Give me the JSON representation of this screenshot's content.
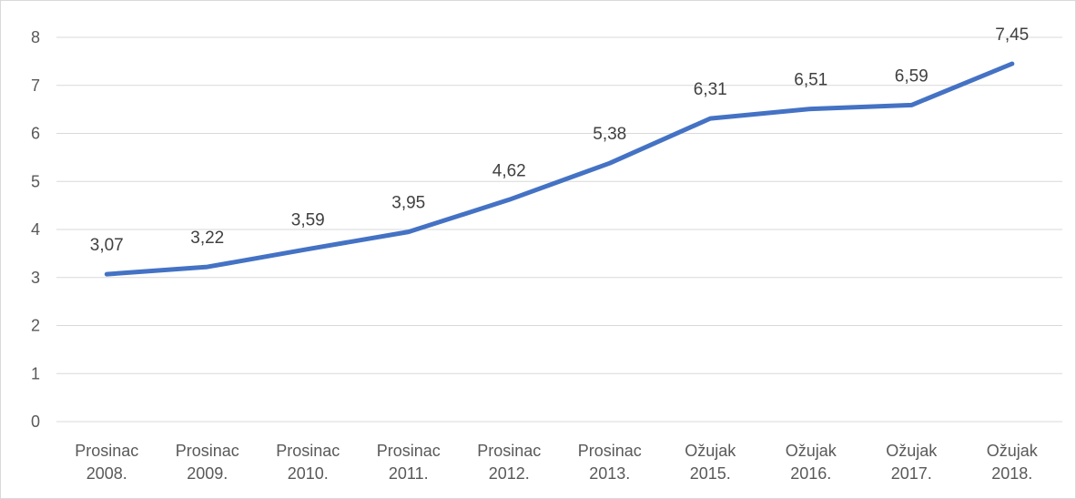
{
  "chart_data": {
    "type": "line",
    "title": "",
    "xlabel": "",
    "ylabel": "",
    "categories": [
      [
        "Prosinac",
        "2008."
      ],
      [
        "Prosinac",
        "2009."
      ],
      [
        "Prosinac",
        "2010."
      ],
      [
        "Prosinac",
        "2011."
      ],
      [
        "Prosinac",
        "2012."
      ],
      [
        "Prosinac",
        "2013."
      ],
      [
        "Ožujak",
        "2015."
      ],
      [
        "Ožujak",
        "2016."
      ],
      [
        "Ožujak",
        "2017."
      ],
      [
        "Ožujak",
        "2018."
      ]
    ],
    "series": [
      {
        "values": [
          3.07,
          3.22,
          3.59,
          3.95,
          4.62,
          5.38,
          6.31,
          6.51,
          6.59,
          7.45
        ],
        "labels": [
          "3,07",
          "3,22",
          "3,59",
          "3,95",
          "4,62",
          "5,38",
          "6,31",
          "6,51",
          "6,59",
          "7,45"
        ],
        "color": "#4472c4"
      }
    ],
    "ylim": [
      0,
      8
    ],
    "yticks": [
      "0",
      "1",
      "2",
      "3",
      "4",
      "5",
      "6",
      "7",
      "8"
    ],
    "grid": true,
    "legend": "none"
  }
}
